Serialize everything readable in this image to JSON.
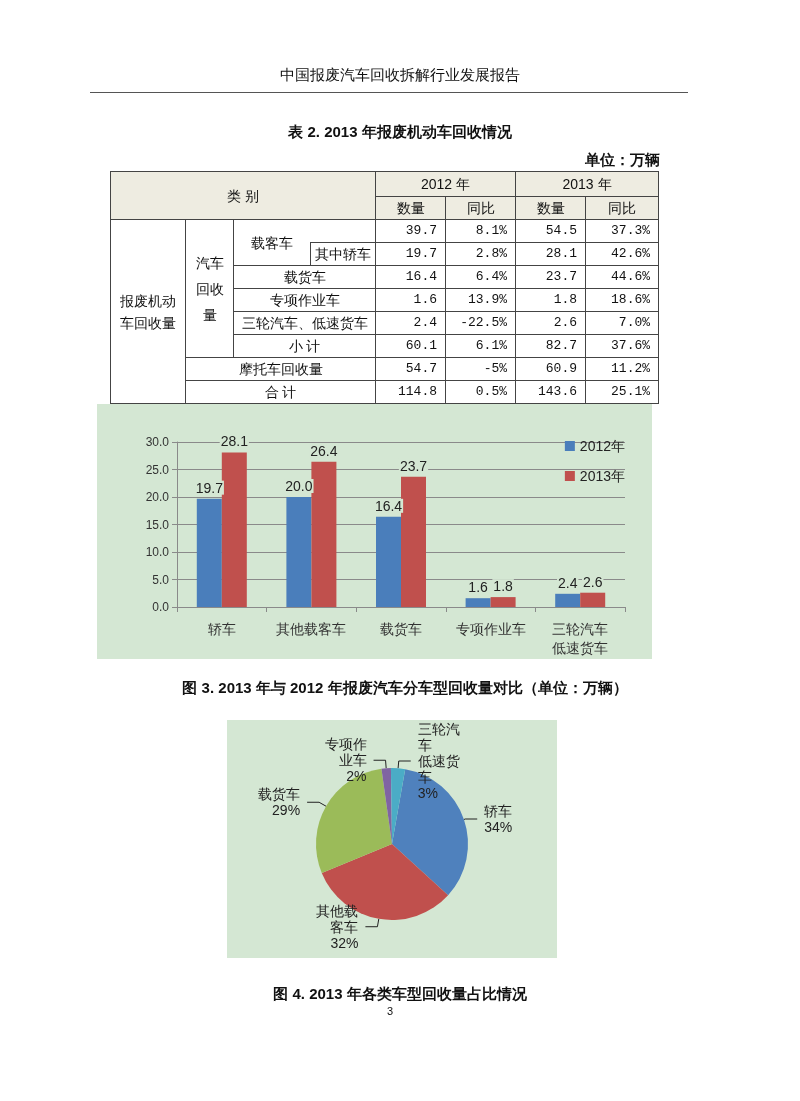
{
  "chart_data": [
    {
      "type": "other",
      "title": "表 2. 2013 年报废机动车回收情况",
      "ylabel": "类 别",
      "annotations": [
        "中国报废汽车回收拆解行业发展报告",
        "单位：万辆",
        "2012 年",
        "2013 年",
        "报废机动车回收量",
        "汽车回收量"
      ],
      "categories": [
        "载客车",
        "其中轿车",
        "载货车",
        "专项作业车",
        "三轮汽车、低速货车",
        "小 计",
        "摩托车回收量",
        "合 计"
      ],
      "series": [
        {
          "name": "数量",
          "values": [
            39.7,
            19.7,
            16.4,
            1.6,
            2.4,
            60.1,
            54.7,
            114.8
          ],
          "value_labels": [
            "39.7",
            "19.7",
            "16.4",
            "1.6",
            "2.4",
            "60.1",
            "54.7",
            "114.8"
          ]
        },
        {
          "name": "同比",
          "values": [
            8.1,
            2.8,
            6.4,
            13.9,
            -22.5,
            6.1,
            -5,
            0.5
          ],
          "value_labels": [
            "8.1%",
            "2.8%",
            "6.4%",
            "13.9%",
            "-22.5%",
            "6.1%",
            "-5%",
            "0.5%"
          ]
        },
        {
          "name": "数量",
          "values": [
            54.5,
            28.1,
            23.7,
            1.8,
            2.6,
            82.7,
            60.9,
            143.6
          ],
          "value_labels": [
            "54.5",
            "28.1",
            "23.7",
            "1.8",
            "2.6",
            "82.7",
            "60.9",
            "143.6"
          ]
        },
        {
          "name": "同比",
          "values": [
            37.3,
            42.6,
            44.6,
            18.6,
            7.0,
            37.6,
            11.2,
            25.1
          ],
          "value_labels": [
            "37.3%",
            "42.6%",
            "44.6%",
            "18.6%",
            "7.0%",
            "37.6%",
            "11.2%",
            "25.1%"
          ]
        }
      ]
    },
    {
      "type": "bar",
      "title": "图 3. 2013 年与 2012 年报废汽车分车型回收量对比（单位：万辆）",
      "categories": [
        "轿车",
        "其他载客车",
        "载货车",
        "专项作业车",
        "三轮汽车低速货车"
      ],
      "series": [
        {
          "name": "2012年",
          "color": "#4a7ebb",
          "values": [
            19.7,
            20.0,
            16.4,
            1.6,
            2.4
          ],
          "value_labels": [
            "19.7",
            "20.0",
            "16.4",
            "1.6",
            "2.4"
          ]
        },
        {
          "name": "2013年",
          "color": "#c0504d",
          "values": [
            28.1,
            26.4,
            23.7,
            1.8,
            2.6
          ],
          "value_labels": [
            "28.1",
            "26.4",
            "23.7",
            "1.8",
            "2.6"
          ]
        }
      ],
      "ylim": [
        0,
        30
      ],
      "yticks": [
        {
          "value": 0,
          "label": "0.0"
        },
        {
          "value": 5,
          "label": "5.0"
        },
        {
          "value": 10,
          "label": "10.0"
        },
        {
          "value": 15,
          "label": "15.0"
        },
        {
          "value": 20,
          "label": "20.0"
        },
        {
          "value": 25,
          "label": "25.0"
        },
        {
          "value": 30,
          "label": "30.0"
        }
      ],
      "grid": "y",
      "legend": "top right"
    },
    {
      "type": "pie",
      "title": "图 4. 2013 年各类车型回收量占比情况",
      "annotations": [
        "3"
      ],
      "categories": [
        "轿车",
        "其他载客车",
        "载货车",
        "专项作业车",
        "三轮汽车低速货车"
      ],
      "values": [
        34,
        32,
        29,
        2,
        3
      ],
      "colors": [
        "#4f81bd",
        "#c0504d",
        "#9bbb59",
        "#8064a2",
        "#4bacc6"
      ],
      "value_labels": [
        "34%",
        "32%",
        "29%",
        "2%",
        "3%"
      ]
    }
  ]
}
